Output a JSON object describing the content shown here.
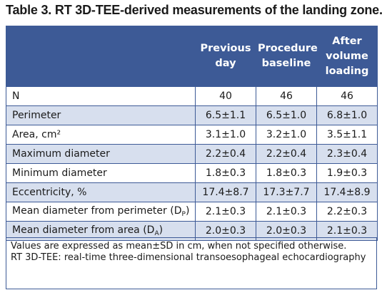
{
  "title": "Table 3. RT 3D-TEE-derived measurements of the landing zone.",
  "table": {
    "headers": [
      "",
      "Previous day",
      "Procedure baseline",
      "After volume loading"
    ],
    "rows": [
      {
        "label": "N",
        "sub": "",
        "values": [
          "40",
          "46",
          "46"
        ]
      },
      {
        "label": "Perimeter",
        "sub": "",
        "values": [
          "6.5±1.1",
          "6.5±1.0",
          "6.8±1.0"
        ]
      },
      {
        "label": "Area, cm²",
        "sub": "",
        "values": [
          "3.1±1.0",
          "3.2±1.0",
          "3.5±1.1"
        ]
      },
      {
        "label": "Maximum diameter",
        "sub": "",
        "values": [
          "2.2±0.4",
          "2.2±0.4",
          "2.3±0.4"
        ]
      },
      {
        "label": "Minimum diameter",
        "sub": "",
        "values": [
          "1.8±0.3",
          "1.8±0.3",
          "1.9±0.3"
        ]
      },
      {
        "label": "Eccentricity, %",
        "sub": "",
        "values": [
          "17.4±8.7",
          "17.3±7.7",
          "17.4±8.9"
        ]
      },
      {
        "label": "Mean diameter from perimeter (D",
        "sub": "P",
        "suffix": ")",
        "values": [
          "2.1±0.3",
          "2.1±0.3",
          "2.2±0.3"
        ]
      },
      {
        "label": "Mean diameter from area (D",
        "sub": "A",
        "suffix": ")",
        "values": [
          "2.0±0.3",
          "2.0±0.3",
          "2.1±0.3"
        ]
      }
    ]
  },
  "footnote": {
    "line1": "Values are expressed as mean±SD in cm, when not specified otherwise.",
    "line2": "RT 3D-TEE: real-time three-dimensional transoesophageal echocardiography"
  },
  "colors": {
    "header_bg": "#3d5a96",
    "stripe_bg": "#d7dfee",
    "border": "#3d5a96"
  }
}
